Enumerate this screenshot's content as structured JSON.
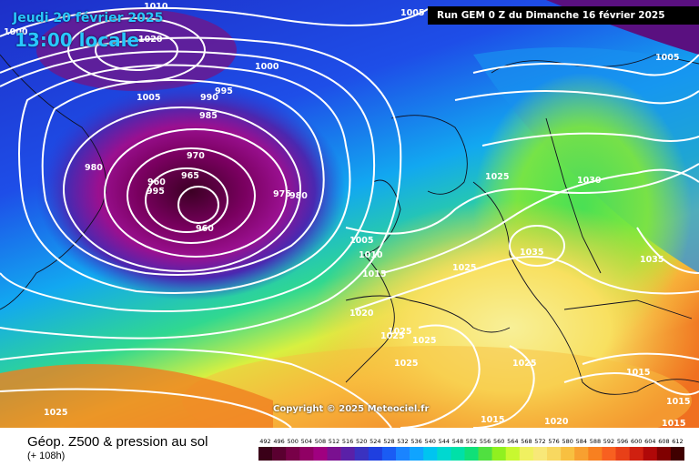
{
  "header": {
    "valid_date": "Jeudi 20 février 2025",
    "valid_time": "13:00 locale",
    "run_info": "Run GEM 0 Z du Dimanche 16 février 2025"
  },
  "copyright": "Copyright © 2025 Meteociel.fr",
  "footer": {
    "title": "Géop. Z500 & pression au sol",
    "forecast_hour": "(+ 108h)"
  },
  "legend": {
    "values": [
      "492",
      "496",
      "500",
      "504",
      "508",
      "512",
      "516",
      "520",
      "524",
      "528",
      "532",
      "536",
      "540",
      "544",
      "548",
      "552",
      "556",
      "560",
      "564",
      "568",
      "572",
      "576",
      "580",
      "584",
      "588",
      "592",
      "596",
      "600",
      "604",
      "608",
      "612"
    ],
    "colors": [
      "#3a0018",
      "#5a0030",
      "#780048",
      "#900064",
      "#a00080",
      "#7a1090",
      "#5a20a8",
      "#3a32c0",
      "#1f3fe0",
      "#1a5cf4",
      "#1a84ff",
      "#10a4ff",
      "#00c4f0",
      "#00d8d0",
      "#00e0a8",
      "#10e078",
      "#50e040",
      "#90f020",
      "#c8f830",
      "#f0f060",
      "#f8e878",
      "#f8d860",
      "#f8c040",
      "#f8a030",
      "#f88020",
      "#f86020",
      "#e84018",
      "#d02010",
      "#b00808",
      "#800000",
      "#400000"
    ]
  },
  "isobar_labels": [
    {
      "text": "1010"
    },
    {
      "text": "1020"
    },
    {
      "text": "1000"
    },
    {
      "text": "1005"
    },
    {
      "text": "995"
    },
    {
      "text": "990"
    },
    {
      "text": "985"
    },
    {
      "text": "980"
    },
    {
      "text": "970"
    },
    {
      "text": "965"
    },
    {
      "text": "960"
    },
    {
      "text": "960"
    },
    {
      "text": "995"
    },
    {
      "text": "975"
    },
    {
      "text": "980"
    },
    {
      "text": "1000"
    },
    {
      "text": "1005"
    },
    {
      "text": "1005"
    },
    {
      "text": "1010"
    },
    {
      "text": "1015"
    },
    {
      "text": "1020"
    },
    {
      "text": "1025"
    },
    {
      "text": "1025"
    },
    {
      "text": "1025"
    },
    {
      "text": "1025"
    },
    {
      "text": "1030"
    },
    {
      "text": "1035"
    },
    {
      "text": "1035"
    },
    {
      "text": "1025"
    },
    {
      "text": "1025"
    },
    {
      "text": "1015"
    },
    {
      "text": "1020"
    },
    {
      "text": "1015"
    },
    {
      "text": "1015"
    },
    {
      "text": "1015"
    },
    {
      "text": "1025"
    },
    {
      "text": "1025"
    },
    {
      "text": "1005"
    }
  ]
}
